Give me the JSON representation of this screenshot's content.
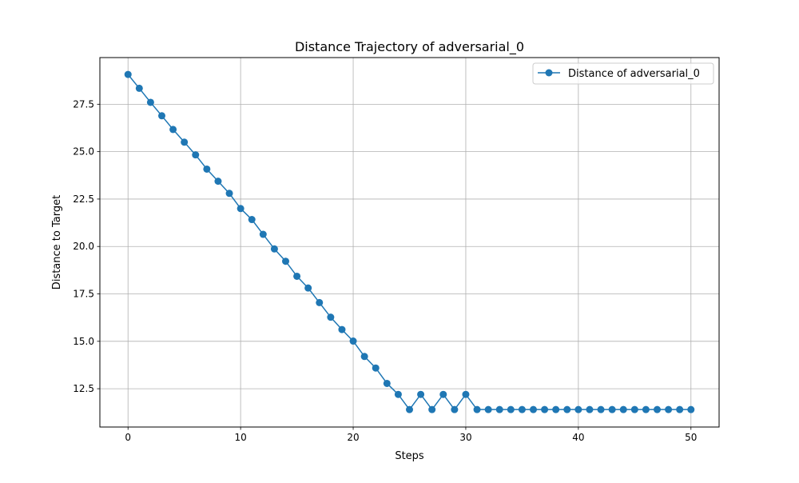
{
  "chart_data": {
    "type": "line",
    "title": "Distance Trajectory of adversarial_0",
    "xlabel": "Steps",
    "ylabel": "Distance to Target",
    "xlim": [
      -2.5,
      52.5
    ],
    "ylim": [
      10.48,
      29.96
    ],
    "xticks": [
      0,
      10,
      20,
      30,
      40,
      50
    ],
    "xtick_labels": [
      "0",
      "10",
      "20",
      "30",
      "40",
      "50"
    ],
    "yticks": [
      12.5,
      15.0,
      17.5,
      20.0,
      22.5,
      25.0,
      27.5
    ],
    "ytick_labels": [
      "12.5",
      "15.0",
      "17.5",
      "20.0",
      "22.5",
      "25.0",
      "27.5"
    ],
    "grid": true,
    "legend_position": "top-right",
    "series": [
      {
        "name": "Distance of adversarial_0",
        "color": "#1f77b4",
        "marker": "circle",
        "x": [
          0,
          1,
          2,
          3,
          4,
          5,
          6,
          7,
          8,
          9,
          10,
          11,
          12,
          13,
          14,
          15,
          16,
          17,
          18,
          19,
          20,
          21,
          22,
          23,
          24,
          25,
          26,
          27,
          28,
          29,
          30,
          31,
          32,
          33,
          34,
          35,
          36,
          37,
          38,
          39,
          40,
          41,
          42,
          43,
          44,
          45,
          46,
          47,
          48,
          49,
          50
        ],
        "y": [
          29.07,
          28.34,
          27.6,
          26.89,
          26.17,
          25.5,
          24.83,
          24.08,
          23.44,
          22.8,
          22.0,
          21.42,
          20.64,
          19.87,
          19.22,
          18.43,
          17.81,
          17.04,
          16.27,
          15.62,
          15.01,
          14.2,
          13.59,
          12.78,
          12.2,
          11.4,
          12.2,
          11.4,
          12.2,
          11.4,
          12.2,
          11.4,
          11.4,
          11.4,
          11.4,
          11.4,
          11.4,
          11.4,
          11.4,
          11.4,
          11.4,
          11.4,
          11.4,
          11.4,
          11.4,
          11.4,
          11.4,
          11.4,
          11.4,
          11.4,
          11.4
        ]
      }
    ]
  }
}
